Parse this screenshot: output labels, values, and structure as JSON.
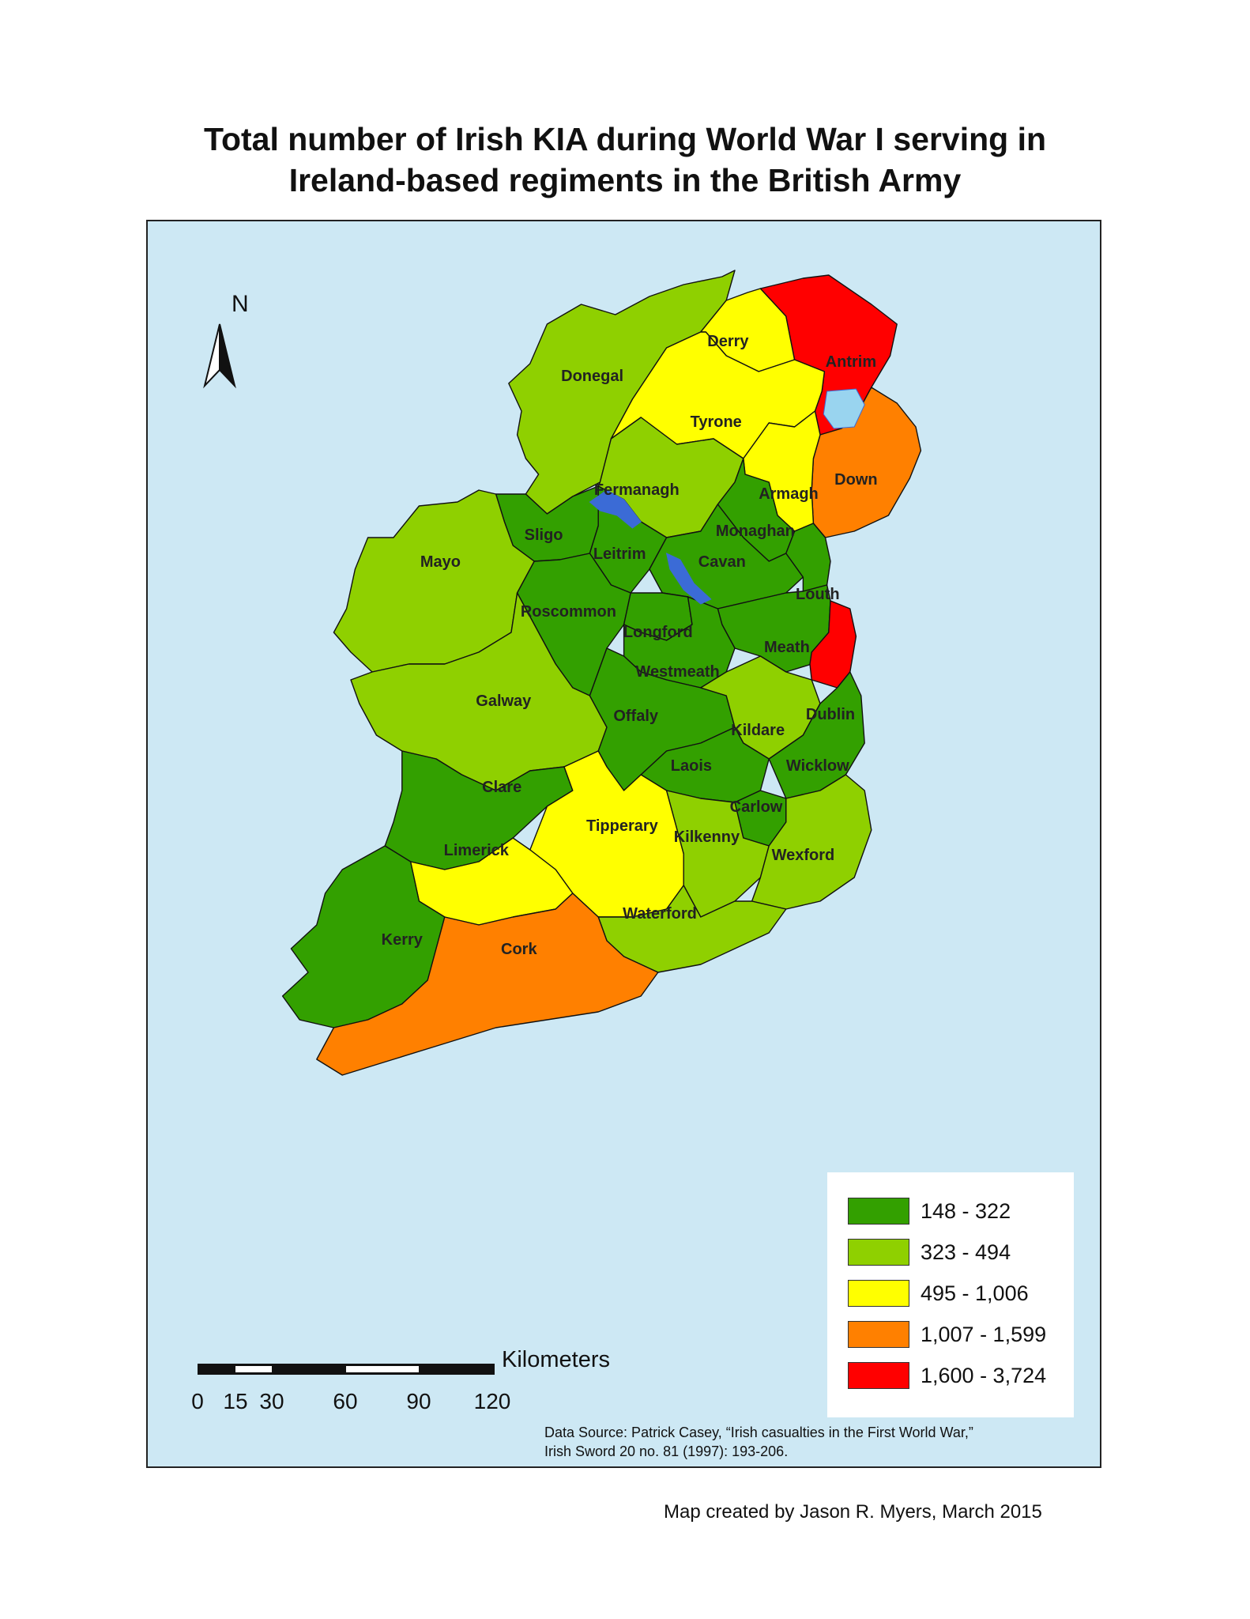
{
  "title": {
    "line1": "Total number of Irish KIA during World War I serving in",
    "line2": "Ireland-based regiments in the British Army"
  },
  "map": {
    "north_label": "N",
    "north_arrow_icon": "north-arrow-icon",
    "colors": {
      "sea": "#cde8f4",
      "lake": "#99d4ef",
      "class1": "#33a000",
      "class2": "#8fd000",
      "class3": "#ffff00",
      "class4": "#ff8000",
      "class5": "#ff0000"
    },
    "counties": [
      {
        "name": "Donegal",
        "class": 2
      },
      {
        "name": "Derry",
        "class": 3
      },
      {
        "name": "Antrim",
        "class": 5
      },
      {
        "name": "Tyrone",
        "class": 3
      },
      {
        "name": "Down",
        "class": 4
      },
      {
        "name": "Fermanagh",
        "class": 2
      },
      {
        "name": "Armagh",
        "class": 3
      },
      {
        "name": "Sligo",
        "class": 1
      },
      {
        "name": "Monaghan",
        "class": 1
      },
      {
        "name": "Leitrim",
        "class": 1
      },
      {
        "name": "Mayo",
        "class": 2
      },
      {
        "name": "Cavan",
        "class": 1
      },
      {
        "name": "Louth",
        "class": 1
      },
      {
        "name": "Roscommon",
        "class": 1
      },
      {
        "name": "Longford",
        "class": 1
      },
      {
        "name": "Meath",
        "class": 1
      },
      {
        "name": "Westmeath",
        "class": 1
      },
      {
        "name": "Galway",
        "class": 2
      },
      {
        "name": "Offaly",
        "class": 1
      },
      {
        "name": "Dublin",
        "class": 5
      },
      {
        "name": "Kildare",
        "class": 2
      },
      {
        "name": "Laois",
        "class": 1
      },
      {
        "name": "Wicklow",
        "class": 1
      },
      {
        "name": "Clare",
        "class": 1
      },
      {
        "name": "Carlow",
        "class": 1
      },
      {
        "name": "Tipperary",
        "class": 3
      },
      {
        "name": "Kilkenny",
        "class": 2
      },
      {
        "name": "Limerick",
        "class": 3
      },
      {
        "name": "Wexford",
        "class": 2
      },
      {
        "name": "Waterford",
        "class": 2
      },
      {
        "name": "Kerry",
        "class": 1
      },
      {
        "name": "Cork",
        "class": 4
      }
    ]
  },
  "legend": {
    "items": [
      {
        "range": "148 - 322",
        "color": "#33a000"
      },
      {
        "range": "323 - 494",
        "color": "#8fd000"
      },
      {
        "range": "495 - 1,006",
        "color": "#ffff00"
      },
      {
        "range": "1,007 - 1,599",
        "color": "#ff8000"
      },
      {
        "range": "1,600 - 3,724",
        "color": "#ff0000"
      }
    ]
  },
  "scale": {
    "unit": "Kilometers",
    "ticks": [
      "0",
      "15",
      "30",
      "60",
      "90",
      "120"
    ]
  },
  "source": {
    "line1": "Data Source: Patrick Casey, “Irish casualties in the First World War,”",
    "line2": "Irish Sword 20 no. 81 (1997): 193-206."
  },
  "credit": "Map created by Jason R. Myers, March 2015"
}
